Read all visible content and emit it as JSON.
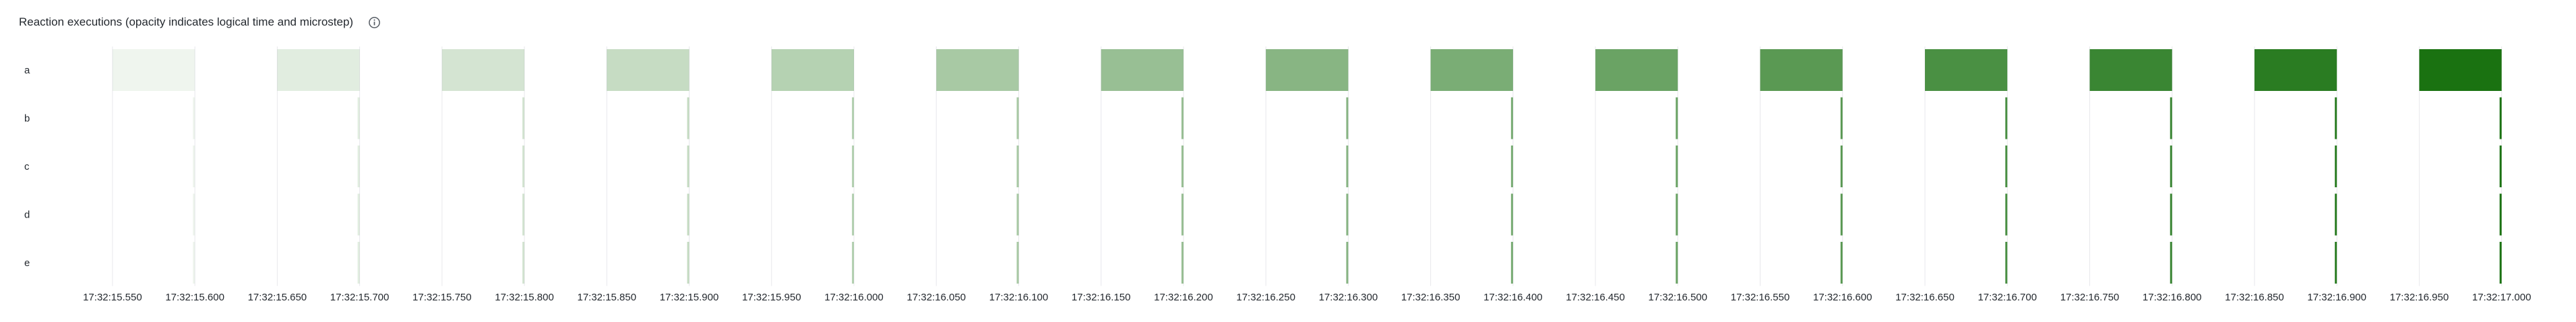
{
  "panel": {
    "title": "Reaction executions (opacity indicates logical time and microstep)",
    "info_icon": "info-circle-icon"
  },
  "colors": {
    "bar": "#1a7211",
    "grid": "#e8e8ec",
    "text": "#24292f",
    "background": "#ffffff"
  },
  "chart_data": {
    "type": "timeline",
    "title": "Reaction executions (opacity indicates logical time and microstep)",
    "rows": [
      "a",
      "b",
      "c",
      "d",
      "e"
    ],
    "x_range": [
      "17:32:15.530",
      "17:32:17.030"
    ],
    "x_ticks": [
      "17:32:15.550",
      "17:32:15.600",
      "17:32:15.650",
      "17:32:15.700",
      "17:32:15.750",
      "17:32:15.800",
      "17:32:15.850",
      "17:32:15.900",
      "17:32:15.950",
      "17:32:16.000",
      "17:32:16.050",
      "17:32:16.100",
      "17:32:16.150",
      "17:32:16.200",
      "17:32:16.250",
      "17:32:16.300",
      "17:32:16.350",
      "17:32:16.400",
      "17:32:16.450",
      "17:32:16.500",
      "17:32:16.550",
      "17:32:16.600",
      "17:32:16.650",
      "17:32:16.700",
      "17:32:16.750",
      "17:32:16.800",
      "17:32:16.850",
      "17:32:16.900",
      "17:32:16.950",
      "17:32:17.000"
    ],
    "grid": true,
    "opacity_encoding": "logical time and microstep",
    "executions": [
      {
        "row": "a",
        "start": "17:32:15.550",
        "end": "17:32:15.600",
        "opacity": 0.07
      },
      {
        "row": "a",
        "start": "17:32:15.650",
        "end": "17:32:15.700",
        "opacity": 0.13
      },
      {
        "row": "a",
        "start": "17:32:15.750",
        "end": "17:32:15.800",
        "opacity": 0.19
      },
      {
        "row": "a",
        "start": "17:32:15.850",
        "end": "17:32:15.900",
        "opacity": 0.25
      },
      {
        "row": "a",
        "start": "17:32:15.950",
        "end": "17:32:16.000",
        "opacity": 0.32
      },
      {
        "row": "a",
        "start": "17:32:16.050",
        "end": "17:32:16.100",
        "opacity": 0.38
      },
      {
        "row": "a",
        "start": "17:32:16.150",
        "end": "17:32:16.200",
        "opacity": 0.45
      },
      {
        "row": "a",
        "start": "17:32:16.250",
        "end": "17:32:16.300",
        "opacity": 0.52
      },
      {
        "row": "a",
        "start": "17:32:16.350",
        "end": "17:32:16.400",
        "opacity": 0.58
      },
      {
        "row": "a",
        "start": "17:32:16.450",
        "end": "17:32:16.500",
        "opacity": 0.65
      },
      {
        "row": "a",
        "start": "17:32:16.550",
        "end": "17:32:16.600",
        "opacity": 0.72
      },
      {
        "row": "a",
        "start": "17:32:16.650",
        "end": "17:32:16.700",
        "opacity": 0.79
      },
      {
        "row": "a",
        "start": "17:32:16.750",
        "end": "17:32:16.800",
        "opacity": 0.86
      },
      {
        "row": "a",
        "start": "17:32:16.850",
        "end": "17:32:16.900",
        "opacity": 0.93
      },
      {
        "row": "a",
        "start": "17:32:16.950",
        "end": "17:32:17.000",
        "opacity": 1.0
      },
      {
        "row": "b",
        "start": "17:32:15.5995",
        "end": "17:32:15.600",
        "opacity": 0.07
      },
      {
        "row": "b",
        "start": "17:32:15.6995",
        "end": "17:32:15.700",
        "opacity": 0.13
      },
      {
        "row": "b",
        "start": "17:32:15.7995",
        "end": "17:32:15.800",
        "opacity": 0.19
      },
      {
        "row": "b",
        "start": "17:32:15.8995",
        "end": "17:32:15.900",
        "opacity": 0.25
      },
      {
        "row": "b",
        "start": "17:32:15.9995",
        "end": "17:32:16.000",
        "opacity": 0.32
      },
      {
        "row": "b",
        "start": "17:32:16.0995",
        "end": "17:32:16.100",
        "opacity": 0.38
      },
      {
        "row": "b",
        "start": "17:32:16.1995",
        "end": "17:32:16.200",
        "opacity": 0.45
      },
      {
        "row": "b",
        "start": "17:32:16.2995",
        "end": "17:32:16.300",
        "opacity": 0.52
      },
      {
        "row": "b",
        "start": "17:32:16.3995",
        "end": "17:32:16.400",
        "opacity": 0.58
      },
      {
        "row": "b",
        "start": "17:32:16.4995",
        "end": "17:32:16.500",
        "opacity": 0.65
      },
      {
        "row": "b",
        "start": "17:32:16.5995",
        "end": "17:32:16.600",
        "opacity": 0.72
      },
      {
        "row": "b",
        "start": "17:32:16.6995",
        "end": "17:32:16.700",
        "opacity": 0.79
      },
      {
        "row": "b",
        "start": "17:32:16.7995",
        "end": "17:32:16.800",
        "opacity": 0.86
      },
      {
        "row": "b",
        "start": "17:32:16.8995",
        "end": "17:32:16.900",
        "opacity": 0.93
      },
      {
        "row": "b",
        "start": "17:32:16.9995",
        "end": "17:32:17.000",
        "opacity": 1.0
      },
      {
        "row": "c",
        "start": "17:32:15.5995",
        "end": "17:32:15.600",
        "opacity": 0.07
      },
      {
        "row": "c",
        "start": "17:32:15.6995",
        "end": "17:32:15.700",
        "opacity": 0.13
      },
      {
        "row": "c",
        "start": "17:32:15.7995",
        "end": "17:32:15.800",
        "opacity": 0.19
      },
      {
        "row": "c",
        "start": "17:32:15.8995",
        "end": "17:32:15.900",
        "opacity": 0.25
      },
      {
        "row": "c",
        "start": "17:32:15.9995",
        "end": "17:32:16.000",
        "opacity": 0.32
      },
      {
        "row": "c",
        "start": "17:32:16.0995",
        "end": "17:32:16.100",
        "opacity": 0.38
      },
      {
        "row": "c",
        "start": "17:32:16.1995",
        "end": "17:32:16.200",
        "opacity": 0.45
      },
      {
        "row": "c",
        "start": "17:32:16.2995",
        "end": "17:32:16.300",
        "opacity": 0.52
      },
      {
        "row": "c",
        "start": "17:32:16.3995",
        "end": "17:32:16.400",
        "opacity": 0.58
      },
      {
        "row": "c",
        "start": "17:32:16.4995",
        "end": "17:32:16.500",
        "opacity": 0.65
      },
      {
        "row": "c",
        "start": "17:32:16.5995",
        "end": "17:32:16.600",
        "opacity": 0.72
      },
      {
        "row": "c",
        "start": "17:32:16.6995",
        "end": "17:32:16.700",
        "opacity": 0.79
      },
      {
        "row": "c",
        "start": "17:32:16.7995",
        "end": "17:32:16.800",
        "opacity": 0.86
      },
      {
        "row": "c",
        "start": "17:32:16.8995",
        "end": "17:32:16.900",
        "opacity": 0.93
      },
      {
        "row": "c",
        "start": "17:32:16.9995",
        "end": "17:32:17.000",
        "opacity": 1.0
      },
      {
        "row": "d",
        "start": "17:32:15.5995",
        "end": "17:32:15.600",
        "opacity": 0.07
      },
      {
        "row": "d",
        "start": "17:32:15.6995",
        "end": "17:32:15.700",
        "opacity": 0.13
      },
      {
        "row": "d",
        "start": "17:32:15.7995",
        "end": "17:32:15.800",
        "opacity": 0.19
      },
      {
        "row": "d",
        "start": "17:32:15.8995",
        "end": "17:32:15.900",
        "opacity": 0.25
      },
      {
        "row": "d",
        "start": "17:32:15.9995",
        "end": "17:32:16.000",
        "opacity": 0.32
      },
      {
        "row": "d",
        "start": "17:32:16.0995",
        "end": "17:32:16.100",
        "opacity": 0.38
      },
      {
        "row": "d",
        "start": "17:32:16.1995",
        "end": "17:32:16.200",
        "opacity": 0.45
      },
      {
        "row": "d",
        "start": "17:32:16.2995",
        "end": "17:32:16.300",
        "opacity": 0.52
      },
      {
        "row": "d",
        "start": "17:32:16.3995",
        "end": "17:32:16.400",
        "opacity": 0.58
      },
      {
        "row": "d",
        "start": "17:32:16.4995",
        "end": "17:32:16.500",
        "opacity": 0.65
      },
      {
        "row": "d",
        "start": "17:32:16.5995",
        "end": "17:32:16.600",
        "opacity": 0.72
      },
      {
        "row": "d",
        "start": "17:32:16.6995",
        "end": "17:32:16.700",
        "opacity": 0.79
      },
      {
        "row": "d",
        "start": "17:32:16.7995",
        "end": "17:32:16.800",
        "opacity": 0.86
      },
      {
        "row": "d",
        "start": "17:32:16.8995",
        "end": "17:32:16.900",
        "opacity": 0.93
      },
      {
        "row": "d",
        "start": "17:32:16.9995",
        "end": "17:32:17.000",
        "opacity": 1.0
      },
      {
        "row": "e",
        "start": "17:32:15.5995",
        "end": "17:32:15.600",
        "opacity": 0.07
      },
      {
        "row": "e",
        "start": "17:32:15.6995",
        "end": "17:32:15.700",
        "opacity": 0.13
      },
      {
        "row": "e",
        "start": "17:32:15.7995",
        "end": "17:32:15.800",
        "opacity": 0.19
      },
      {
        "row": "e",
        "start": "17:32:15.8995",
        "end": "17:32:15.900",
        "opacity": 0.25
      },
      {
        "row": "e",
        "start": "17:32:15.9995",
        "end": "17:32:16.000",
        "opacity": 0.32
      },
      {
        "row": "e",
        "start": "17:32:16.0995",
        "end": "17:32:16.100",
        "opacity": 0.38
      },
      {
        "row": "e",
        "start": "17:32:16.1995",
        "end": "17:32:16.200",
        "opacity": 0.45
      },
      {
        "row": "e",
        "start": "17:32:16.2995",
        "end": "17:32:16.300",
        "opacity": 0.52
      },
      {
        "row": "e",
        "start": "17:32:16.3995",
        "end": "17:32:16.400",
        "opacity": 0.58
      },
      {
        "row": "e",
        "start": "17:32:16.4995",
        "end": "17:32:16.500",
        "opacity": 0.65
      },
      {
        "row": "e",
        "start": "17:32:16.5995",
        "end": "17:32:16.600",
        "opacity": 0.72
      },
      {
        "row": "e",
        "start": "17:32:16.6995",
        "end": "17:32:16.700",
        "opacity": 0.79
      },
      {
        "row": "e",
        "start": "17:32:16.7995",
        "end": "17:32:16.800",
        "opacity": 0.86
      },
      {
        "row": "e",
        "start": "17:32:16.8995",
        "end": "17:32:16.900",
        "opacity": 0.93
      },
      {
        "row": "e",
        "start": "17:32:16.9995",
        "end": "17:32:17.000",
        "opacity": 1.0
      }
    ]
  }
}
